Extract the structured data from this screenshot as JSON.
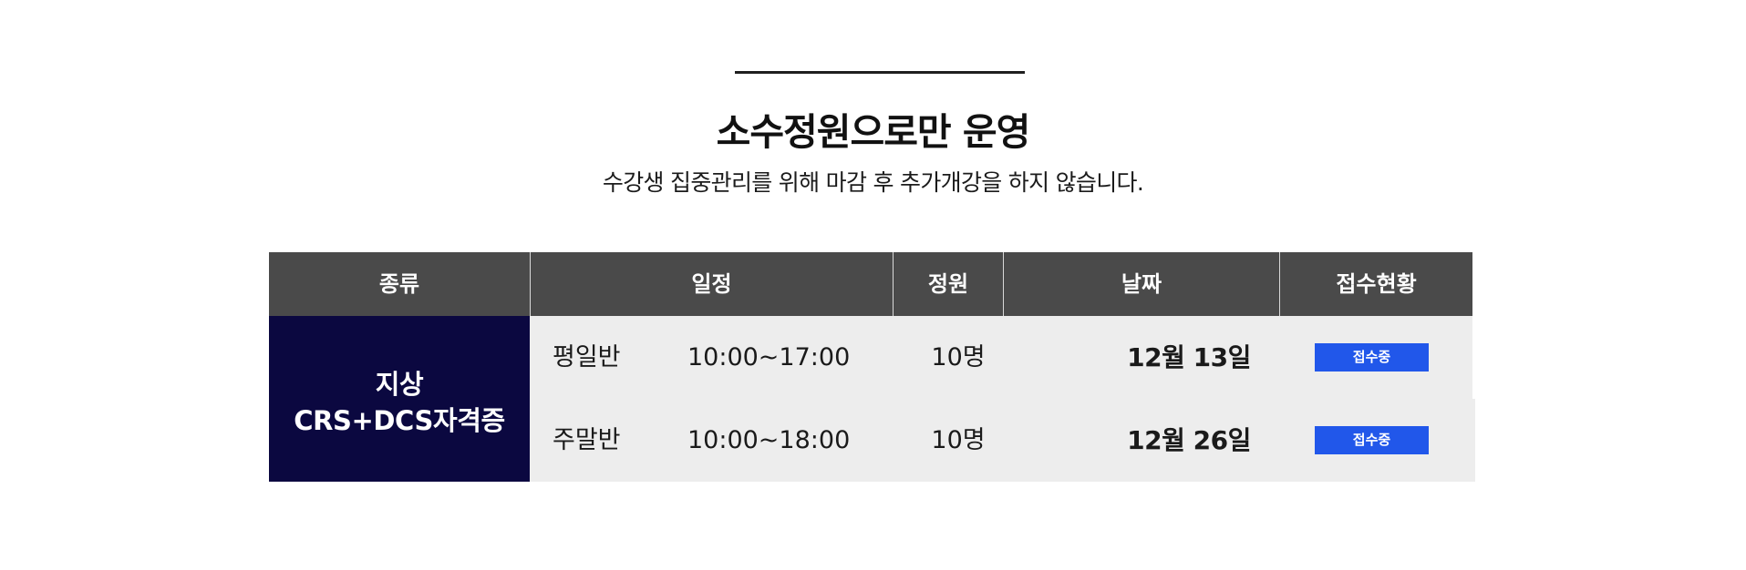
{
  "hero": {
    "title": "소수정원으로만 운영",
    "subtitle": "수강생 집중관리를 위해 마감 후 추가개강을 하지 않습니다."
  },
  "schedule": {
    "headers": {
      "kind": "종류",
      "schedule": "일정",
      "seats": "정원",
      "date": "날짜",
      "status": "접수현황"
    },
    "kind": {
      "line1": "지상",
      "line2": "CRS+DCS자격증"
    },
    "rows": [
      {
        "type": "평일반",
        "time": "10:00~17:00",
        "seats": "10명",
        "date": "12월 13일",
        "status": "접수중"
      },
      {
        "type": "주말반",
        "time": "10:00~18:00",
        "seats": "10명",
        "date": "12월 26일",
        "status": "접수중"
      }
    ]
  },
  "colors": {
    "header_bg": "#4a4a4a",
    "kind_bg": "#0b0840",
    "row_bg": "#ededed",
    "status_button": "#2157ea"
  }
}
